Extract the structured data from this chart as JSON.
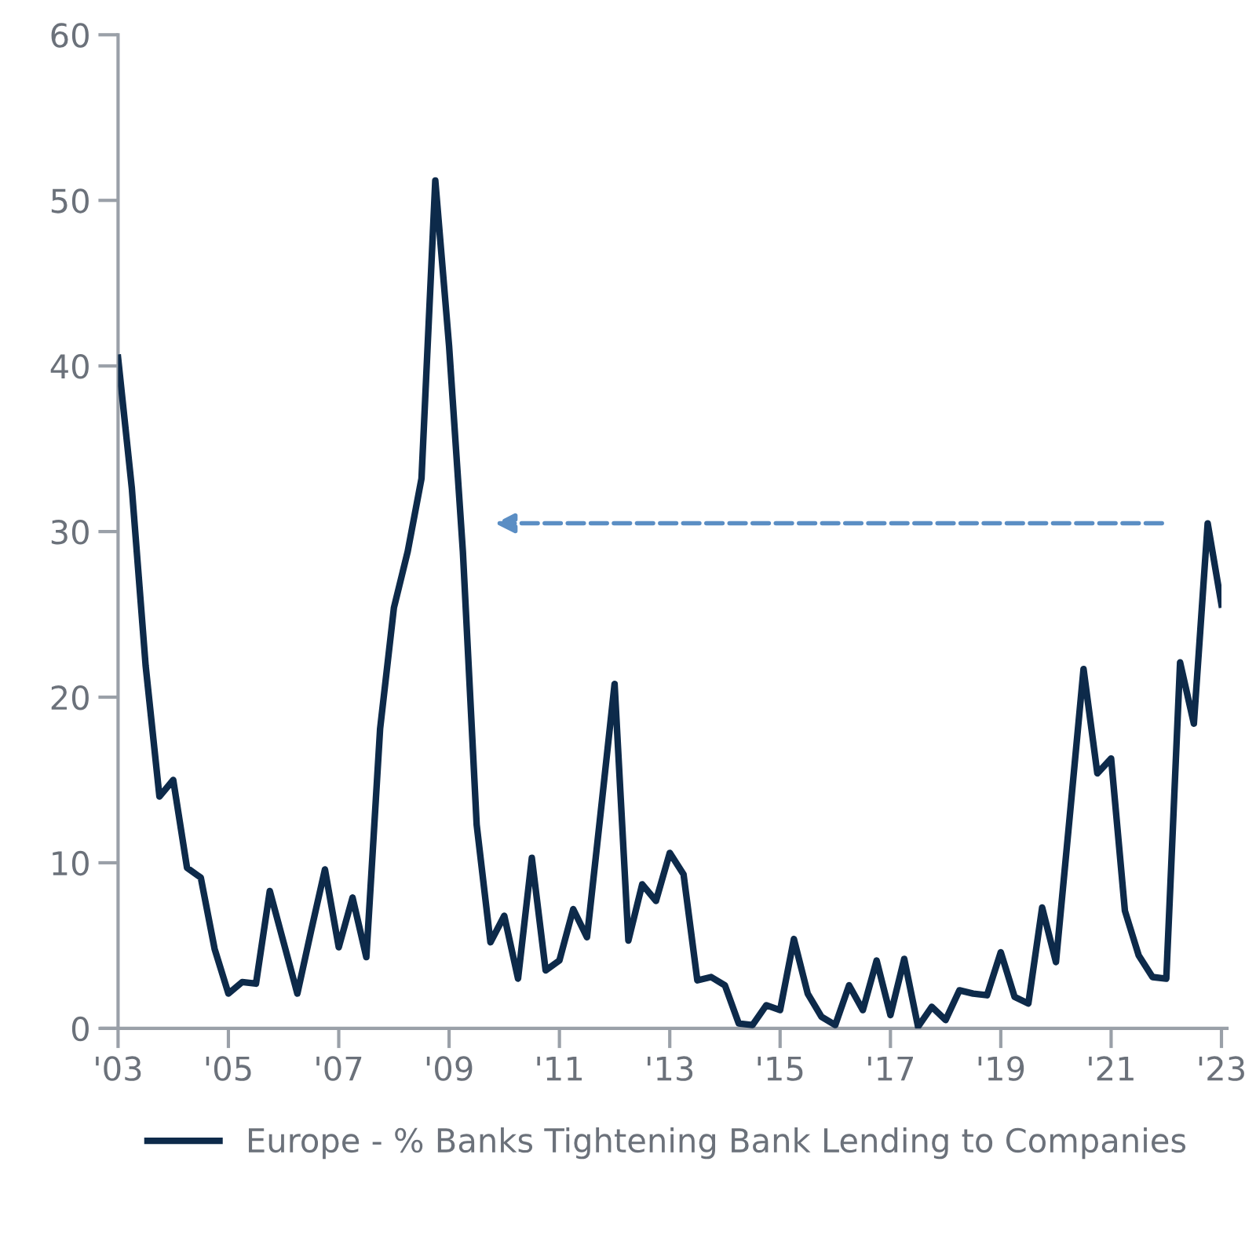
{
  "chart_data": {
    "type": "line",
    "x": [
      2003.0,
      2003.25,
      2003.5,
      2003.75,
      2004.0,
      2004.25,
      2004.5,
      2004.75,
      2005.0,
      2005.25,
      2005.5,
      2005.75,
      2006.0,
      2006.25,
      2006.5,
      2006.75,
      2007.0,
      2007.25,
      2007.5,
      2007.75,
      2008.0,
      2008.25,
      2008.5,
      2008.75,
      2009.0,
      2009.25,
      2009.5,
      2009.75,
      2010.0,
      2010.25,
      2010.5,
      2010.75,
      2011.0,
      2011.25,
      2011.5,
      2011.75,
      2012.0,
      2012.25,
      2012.5,
      2012.75,
      2013.0,
      2013.25,
      2013.5,
      2013.75,
      2014.0,
      2014.25,
      2014.5,
      2014.75,
      2015.0,
      2015.25,
      2015.5,
      2015.75,
      2016.0,
      2016.25,
      2016.5,
      2016.75,
      2017.0,
      2017.25,
      2017.5,
      2017.75,
      2018.0,
      2018.25,
      2018.5,
      2018.75,
      2019.0,
      2019.25,
      2019.5,
      2019.75,
      2020.0,
      2020.25,
      2020.5,
      2020.75,
      2021.0,
      2021.25,
      2021.5,
      2021.75,
      2022.0,
      2022.25,
      2022.5,
      2022.75,
      2023.0
    ],
    "series": [
      {
        "name": "Europe - % Banks Tightening Bank Lending to Companies",
        "color": "#0d2a4a",
        "values": [
          40.5,
          32.6,
          21.9,
          14.0,
          15.0,
          9.7,
          9.1,
          4.8,
          2.1,
          2.8,
          2.7,
          8.3,
          5.2,
          2.1,
          5.9,
          9.6,
          4.9,
          7.9,
          4.3,
          18.1,
          25.4,
          28.8,
          33.2,
          51.2,
          41.2,
          28.8,
          12.3,
          5.2,
          6.8,
          3.0,
          10.3,
          3.5,
          4.1,
          7.2,
          5.5,
          13.1,
          20.8,
          5.3,
          8.7,
          7.7,
          10.6,
          9.3,
          2.9,
          3.1,
          2.6,
          0.3,
          0.2,
          1.4,
          1.1,
          5.4,
          2.1,
          0.7,
          0.2,
          2.6,
          1.1,
          4.1,
          0.8,
          4.2,
          0.1,
          1.3,
          0.5,
          2.3,
          2.1,
          2.0,
          4.6,
          1.9,
          1.5,
          7.3,
          4.0,
          12.8,
          21.7,
          15.4,
          16.3,
          7.1,
          4.4,
          3.1,
          3.0,
          22.1,
          18.4,
          30.5,
          25.6
        ]
      }
    ],
    "xlim": [
      2003,
      2023
    ],
    "xticks": [
      {
        "value": 2003,
        "label": "'03"
      },
      {
        "value": 2005,
        "label": "'05"
      },
      {
        "value": 2007,
        "label": "'07"
      },
      {
        "value": 2009,
        "label": "'09"
      },
      {
        "value": 2011,
        "label": "'11"
      },
      {
        "value": 2013,
        "label": "'13"
      },
      {
        "value": 2015,
        "label": "'15"
      },
      {
        "value": 2017,
        "label": "'17"
      },
      {
        "value": 2019,
        "label": "'19"
      },
      {
        "value": 2021,
        "label": "'21"
      },
      {
        "value": 2023,
        "label": "'23"
      }
    ],
    "ylim": [
      0,
      60
    ],
    "yticks": [
      0,
      10,
      20,
      30,
      40,
      50,
      60
    ],
    "grid": false,
    "legend": "bottom",
    "marker": "none",
    "line_style": "solid"
  }
}
